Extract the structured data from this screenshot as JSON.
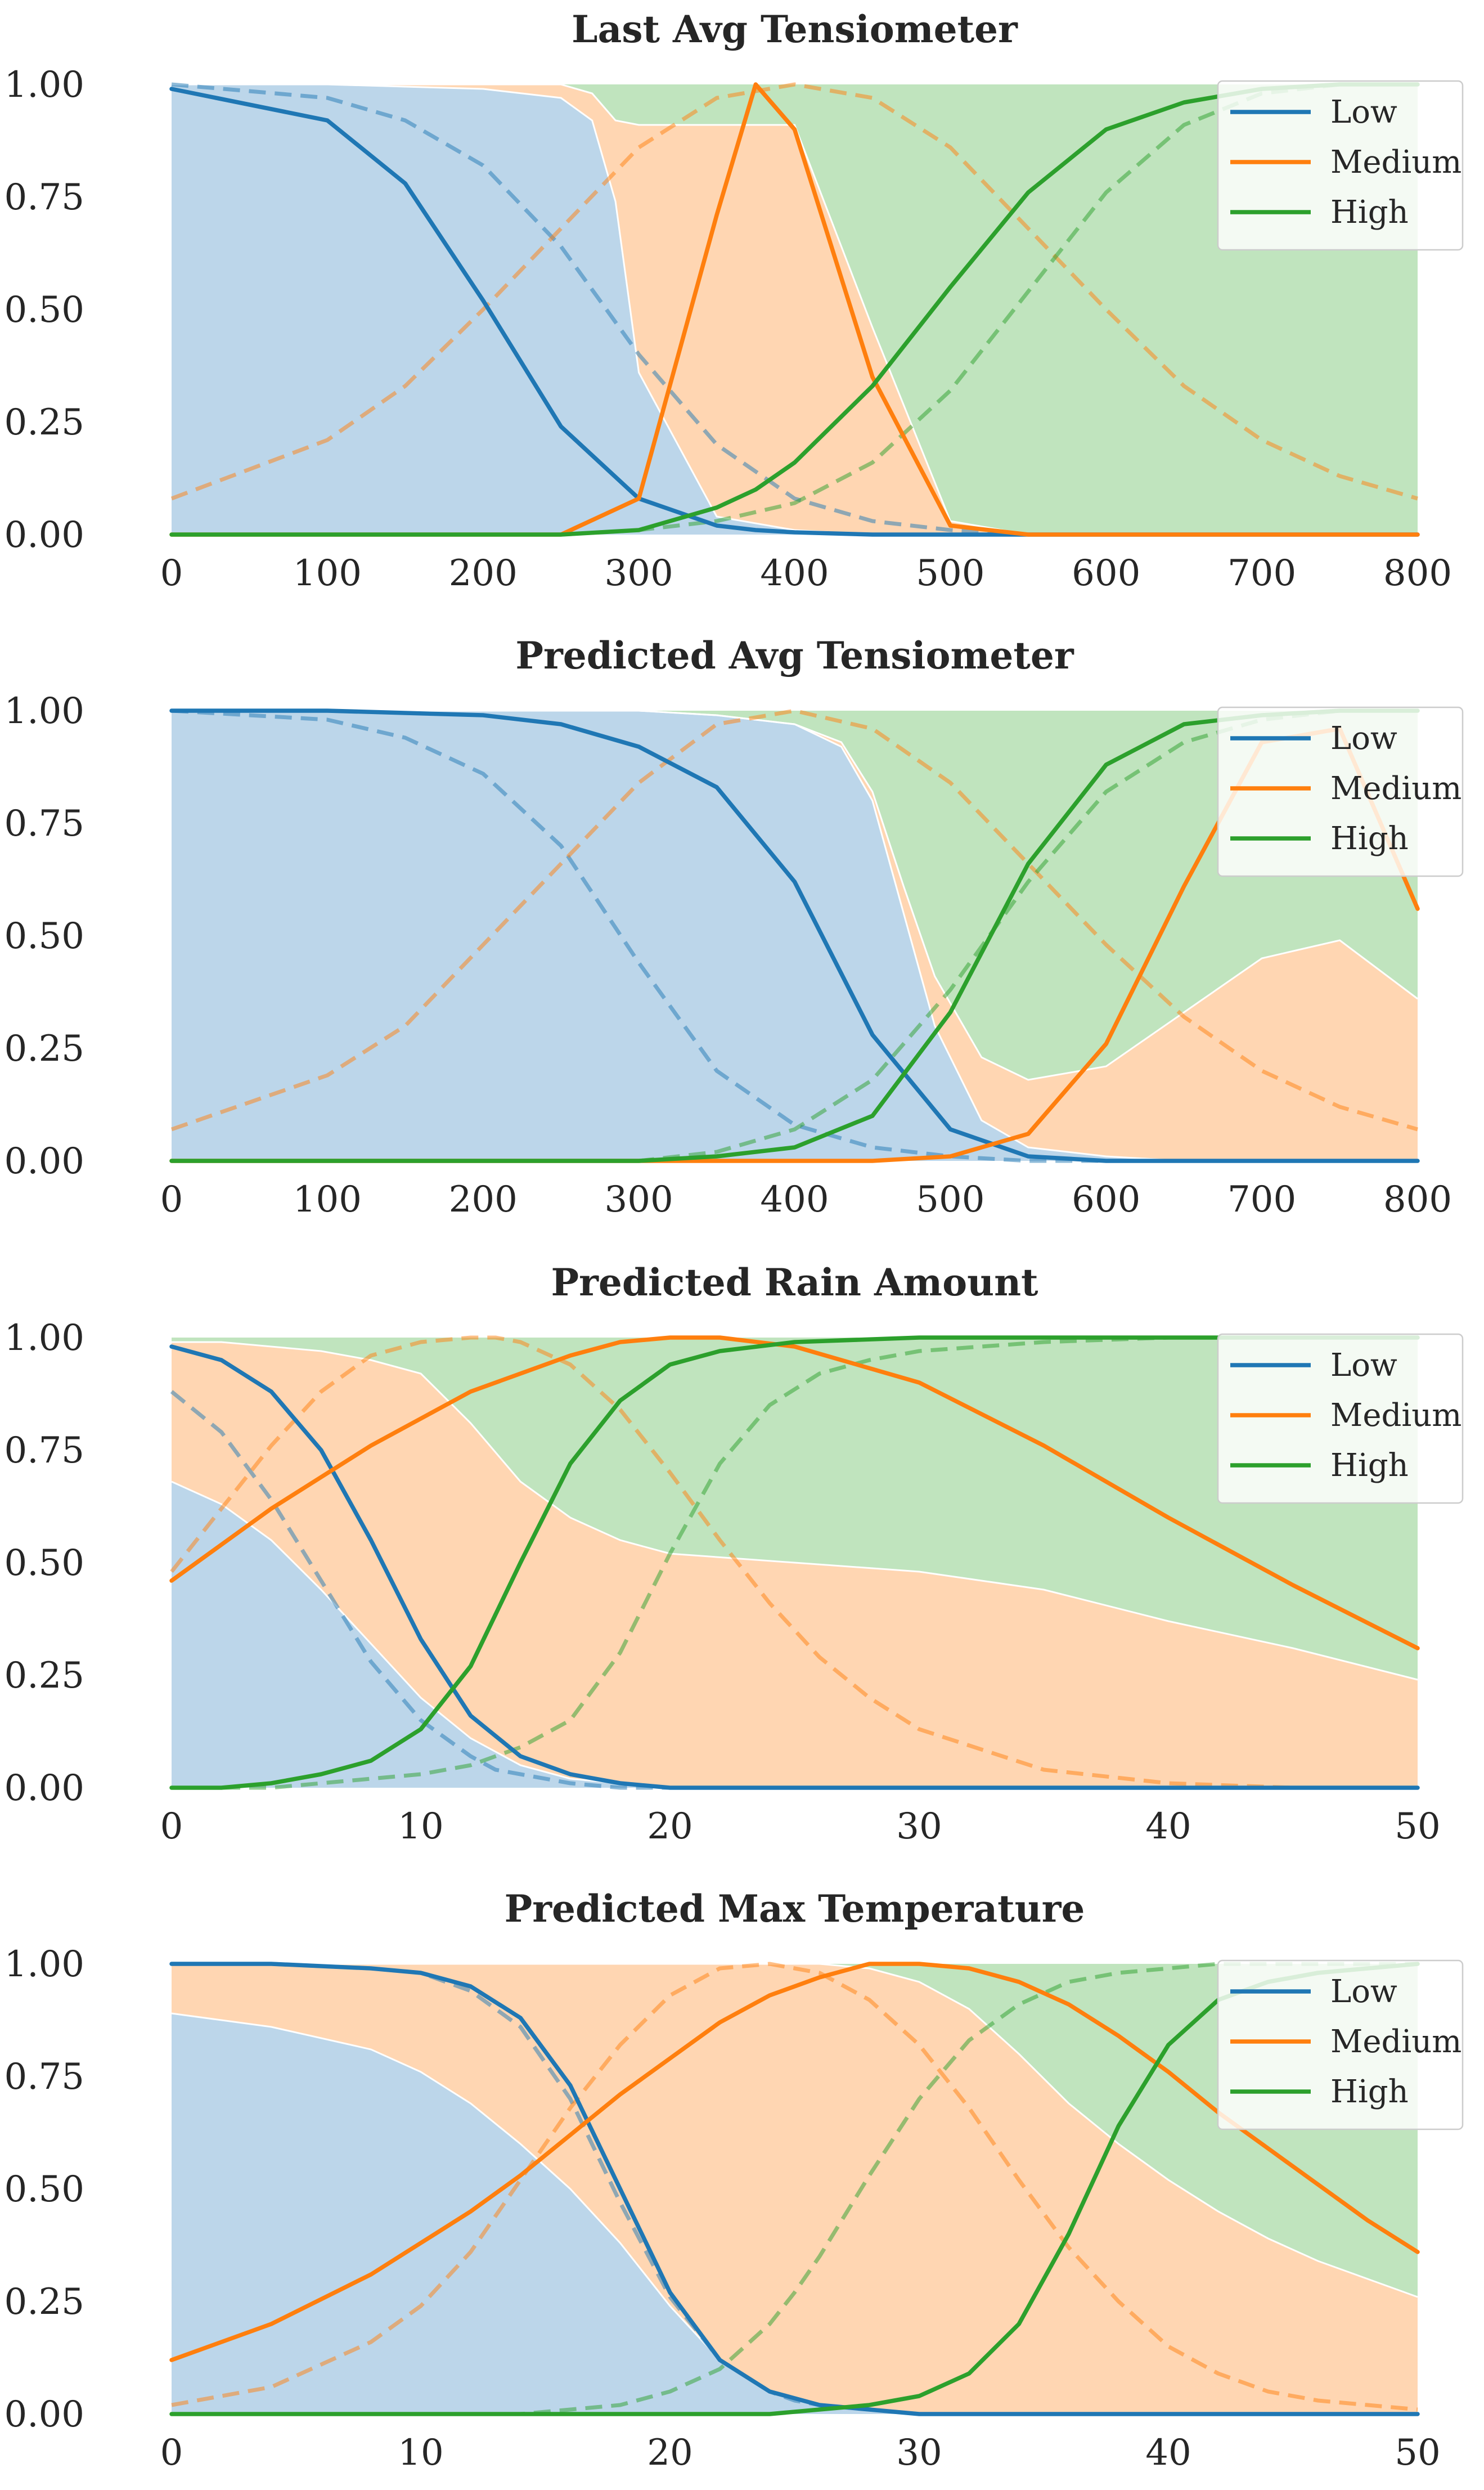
{
  "chart_data": [
    {
      "type": "line",
      "title": "Last Avg Tensiometer",
      "xlim": [
        0,
        800
      ],
      "ylim": [
        0,
        1
      ],
      "xticks": [
        "0",
        "100",
        "200",
        "300",
        "400",
        "500",
        "600",
        "700",
        "800"
      ],
      "yticks": [
        "0.00",
        "0.25",
        "0.50",
        "0.75",
        "1.00"
      ],
      "legend": {
        "position": "top-right",
        "entries": [
          "Low",
          "Medium",
          "High"
        ]
      },
      "colors": {
        "Low": "#1f77b4",
        "Medium": "#ff7f0e",
        "High": "#2ca02c"
      },
      "solid": {
        "x": [
          0,
          100,
          150,
          200,
          250,
          300,
          350,
          375,
          400,
          450,
          500,
          550,
          600,
          650,
          700,
          750,
          800
        ],
        "Low": [
          0.99,
          0.92,
          0.78,
          0.52,
          0.24,
          0.08,
          0.02,
          0.01,
          0.005,
          0.0,
          0.0,
          0.0,
          0.0,
          0.0,
          0.0,
          0.0,
          0.0
        ],
        "Medium": [
          0.0,
          0.0,
          0.0,
          0.0,
          0.0,
          0.08,
          0.71,
          1.0,
          0.9,
          0.35,
          0.02,
          0.0,
          0.0,
          0.0,
          0.0,
          0.0,
          0.0
        ],
        "High": [
          0.0,
          0.0,
          0.0,
          0.0,
          0.0,
          0.01,
          0.06,
          0.1,
          0.16,
          0.33,
          0.55,
          0.76,
          0.9,
          0.96,
          0.99,
          1.0,
          1.0
        ]
      },
      "dashed": {
        "x": [
          0,
          100,
          150,
          200,
          250,
          300,
          350,
          400,
          450,
          500,
          550,
          600,
          650,
          700,
          750,
          800
        ],
        "Low": [
          1.0,
          0.97,
          0.92,
          0.82,
          0.64,
          0.4,
          0.2,
          0.08,
          0.03,
          0.01,
          0.0,
          0.0,
          0.0,
          0.0,
          0.0,
          0.0
        ],
        "Medium": [
          0.08,
          0.21,
          0.33,
          0.5,
          0.68,
          0.86,
          0.97,
          1.0,
          0.97,
          0.86,
          0.68,
          0.5,
          0.33,
          0.21,
          0.13,
          0.08
        ],
        "High": [
          0.0,
          0.0,
          0.0,
          0.0,
          0.0,
          0.01,
          0.03,
          0.07,
          0.16,
          0.32,
          0.54,
          0.76,
          0.91,
          0.98,
          1.0,
          1.0
        ]
      },
      "area": {
        "x": [
          0,
          100,
          200,
          250,
          270,
          285,
          300,
          350,
          400,
          450,
          500,
          550,
          600,
          700,
          800
        ],
        "Low": [
          1.0,
          1.0,
          0.99,
          0.97,
          0.92,
          0.74,
          0.36,
          0.04,
          0.01,
          0.0,
          0.0,
          0.0,
          0.0,
          0.0,
          0.0
        ],
        "Medium": [
          0.0,
          0.0,
          0.01,
          0.03,
          0.06,
          0.18,
          0.55,
          0.87,
          0.9,
          0.46,
          0.03,
          0.0,
          0.0,
          0.0,
          0.0
        ]
      }
    },
    {
      "type": "line",
      "title": "Predicted Avg Tensiometer",
      "xlim": [
        0,
        800
      ],
      "ylim": [
        0,
        1
      ],
      "xticks": [
        "0",
        "100",
        "200",
        "300",
        "400",
        "500",
        "600",
        "700",
        "800"
      ],
      "yticks": [
        "0.00",
        "0.25",
        "0.50",
        "0.75",
        "1.00"
      ],
      "legend": {
        "position": "top-right",
        "entries": [
          "Low",
          "Medium",
          "High"
        ]
      },
      "colors": {
        "Low": "#1f77b4",
        "Medium": "#ff7f0e",
        "High": "#2ca02c"
      },
      "solid": {
        "x": [
          0,
          100,
          200,
          250,
          300,
          350,
          400,
          450,
          500,
          550,
          600,
          650,
          700,
          750,
          800
        ],
        "Low": [
          1.0,
          1.0,
          0.99,
          0.97,
          0.92,
          0.83,
          0.62,
          0.28,
          0.07,
          0.01,
          0.0,
          0.0,
          0.0,
          0.0,
          0.0
        ],
        "Medium": [
          0.0,
          0.0,
          0.0,
          0.0,
          0.0,
          0.0,
          0.0,
          0.0,
          0.01,
          0.06,
          0.26,
          0.61,
          0.93,
          0.96,
          0.56
        ],
        "High": [
          0.0,
          0.0,
          0.0,
          0.0,
          0.0,
          0.01,
          0.03,
          0.1,
          0.33,
          0.66,
          0.88,
          0.97,
          0.99,
          1.0,
          1.0
        ]
      },
      "dashed": {
        "x": [
          0,
          100,
          150,
          200,
          250,
          300,
          350,
          400,
          450,
          500,
          550,
          600,
          650,
          700,
          750,
          800
        ],
        "Low": [
          1.0,
          0.98,
          0.94,
          0.86,
          0.7,
          0.44,
          0.2,
          0.08,
          0.03,
          0.01,
          0.0,
          0.0,
          0.0,
          0.0,
          0.0,
          0.0
        ],
        "Medium": [
          0.07,
          0.19,
          0.3,
          0.48,
          0.66,
          0.84,
          0.97,
          1.0,
          0.96,
          0.84,
          0.66,
          0.48,
          0.32,
          0.2,
          0.12,
          0.07
        ],
        "High": [
          0.0,
          0.0,
          0.0,
          0.0,
          0.0,
          0.0,
          0.02,
          0.07,
          0.18,
          0.38,
          0.62,
          0.82,
          0.93,
          0.98,
          1.0,
          1.0
        ]
      },
      "area": {
        "x": [
          0,
          100,
          200,
          300,
          350,
          400,
          430,
          450,
          470,
          490,
          520,
          550,
          600,
          650,
          700,
          750,
          800
        ],
        "Low": [
          1.0,
          1.0,
          1.0,
          1.0,
          0.99,
          0.97,
          0.92,
          0.8,
          0.55,
          0.3,
          0.09,
          0.03,
          0.01,
          0.0,
          0.0,
          0.0,
          0.0
        ],
        "Medium": [
          0.0,
          0.0,
          0.0,
          0.0,
          0.0,
          0.0,
          0.01,
          0.02,
          0.06,
          0.11,
          0.14,
          0.15,
          0.2,
          0.33,
          0.45,
          0.49,
          0.36
        ]
      }
    },
    {
      "type": "line",
      "title": "Predicted Rain Amount",
      "xlim": [
        0,
        50
      ],
      "ylim": [
        0,
        1
      ],
      "xticks": [
        "0",
        "10",
        "20",
        "30",
        "40",
        "50"
      ],
      "yticks": [
        "0.00",
        "0.25",
        "0.50",
        "0.75",
        "1.00"
      ],
      "legend": {
        "position": "top-right",
        "entries": [
          "Low",
          "Medium",
          "High"
        ]
      },
      "colors": {
        "Low": "#1f77b4",
        "Medium": "#ff7f0e",
        "High": "#2ca02c"
      },
      "solid": {
        "x": [
          0,
          2,
          4,
          6,
          8,
          10,
          12,
          14,
          16,
          18,
          20,
          22,
          25,
          30,
          35,
          40,
          45,
          50
        ],
        "Low": [
          0.98,
          0.95,
          0.88,
          0.75,
          0.55,
          0.33,
          0.16,
          0.07,
          0.03,
          0.01,
          0.0,
          0.0,
          0.0,
          0.0,
          0.0,
          0.0,
          0.0,
          0.0
        ],
        "Medium": [
          0.46,
          0.54,
          0.62,
          0.69,
          0.76,
          0.82,
          0.88,
          0.92,
          0.96,
          0.99,
          1.0,
          1.0,
          0.98,
          0.9,
          0.76,
          0.6,
          0.45,
          0.31
        ],
        "High": [
          0.0,
          0.0,
          0.01,
          0.03,
          0.06,
          0.13,
          0.27,
          0.5,
          0.72,
          0.86,
          0.94,
          0.97,
          0.99,
          1.0,
          1.0,
          1.0,
          1.0,
          1.0
        ]
      },
      "dashed": {
        "x": [
          0,
          2,
          4,
          6,
          8,
          10,
          12,
          13,
          14,
          16,
          18,
          20,
          22,
          24,
          26,
          28,
          30,
          35,
          40,
          45,
          50
        ],
        "Low": [
          0.88,
          0.79,
          0.64,
          0.46,
          0.28,
          0.15,
          0.07,
          0.04,
          0.03,
          0.01,
          0.0,
          0.0,
          0.0,
          0.0,
          0.0,
          0.0,
          0.0,
          0.0,
          0.0,
          0.0,
          0.0
        ],
        "Medium": [
          0.48,
          0.62,
          0.76,
          0.88,
          0.96,
          0.99,
          1.0,
          1.0,
          0.99,
          0.94,
          0.84,
          0.7,
          0.55,
          0.41,
          0.29,
          0.2,
          0.13,
          0.04,
          0.01,
          0.0,
          0.0
        ],
        "High": [
          0.0,
          0.0,
          0.0,
          0.01,
          0.02,
          0.03,
          0.05,
          0.07,
          0.09,
          0.15,
          0.3,
          0.52,
          0.72,
          0.85,
          0.92,
          0.95,
          0.97,
          0.99,
          1.0,
          1.0,
          1.0
        ]
      },
      "area": {
        "x": [
          0,
          2,
          4,
          6,
          8,
          10,
          12,
          14,
          16,
          18,
          20,
          25,
          30,
          35,
          40,
          45,
          50
        ],
        "Low": [
          0.68,
          0.63,
          0.55,
          0.44,
          0.32,
          0.2,
          0.11,
          0.05,
          0.02,
          0.01,
          0.0,
          0.0,
          0.0,
          0.0,
          0.0,
          0.0,
          0.0
        ],
        "Medium": [
          0.31,
          0.36,
          0.43,
          0.53,
          0.63,
          0.72,
          0.7,
          0.63,
          0.58,
          0.54,
          0.52,
          0.5,
          0.48,
          0.44,
          0.37,
          0.31,
          0.24
        ]
      }
    },
    {
      "type": "line",
      "title": "Predicted Max Temperature",
      "xlim": [
        0,
        50
      ],
      "ylim": [
        0,
        1
      ],
      "xticks": [
        "0",
        "10",
        "20",
        "30",
        "40",
        "50"
      ],
      "yticks": [
        "0.00",
        "0.25",
        "0.50",
        "0.75",
        "1.00"
      ],
      "legend": {
        "position": "top-right",
        "entries": [
          "Low",
          "Medium",
          "High"
        ]
      },
      "colors": {
        "Low": "#1f77b4",
        "Medium": "#ff7f0e",
        "High": "#2ca02c"
      },
      "solid": {
        "x": [
          0,
          4,
          8,
          10,
          12,
          14,
          16,
          18,
          20,
          22,
          24,
          26,
          28,
          30,
          32,
          34,
          36,
          38,
          40,
          42,
          44,
          46,
          48,
          50
        ],
        "Low": [
          1.0,
          1.0,
          0.99,
          0.98,
          0.95,
          0.88,
          0.73,
          0.5,
          0.27,
          0.12,
          0.05,
          0.02,
          0.01,
          0.0,
          0.0,
          0.0,
          0.0,
          0.0,
          0.0,
          0.0,
          0.0,
          0.0,
          0.0,
          0.0
        ],
        "Medium": [
          0.12,
          0.2,
          0.31,
          0.38,
          0.45,
          0.53,
          0.62,
          0.71,
          0.79,
          0.87,
          0.93,
          0.97,
          1.0,
          1.0,
          0.99,
          0.96,
          0.91,
          0.84,
          0.76,
          0.67,
          0.59,
          0.51,
          0.43,
          0.36
        ],
        "High": [
          0.0,
          0.0,
          0.0,
          0.0,
          0.0,
          0.0,
          0.0,
          0.0,
          0.0,
          0.0,
          0.0,
          0.01,
          0.02,
          0.04,
          0.09,
          0.2,
          0.4,
          0.64,
          0.82,
          0.92,
          0.96,
          0.98,
          0.99,
          1.0
        ]
      },
      "dashed": {
        "x": [
          0,
          4,
          8,
          10,
          12,
          14,
          16,
          18,
          20,
          22,
          24,
          25,
          26,
          28,
          30,
          32,
          34,
          36,
          38,
          40,
          42,
          44,
          46,
          48,
          50
        ],
        "Low": [
          1.0,
          1.0,
          0.99,
          0.98,
          0.94,
          0.86,
          0.7,
          0.47,
          0.26,
          0.12,
          0.05,
          0.03,
          0.02,
          0.01,
          0.0,
          0.0,
          0.0,
          0.0,
          0.0,
          0.0,
          0.0,
          0.0,
          0.0,
          0.0,
          0.0
        ],
        "Medium": [
          0.02,
          0.06,
          0.16,
          0.24,
          0.36,
          0.52,
          0.68,
          0.82,
          0.93,
          0.99,
          1.0,
          0.99,
          0.98,
          0.92,
          0.82,
          0.68,
          0.52,
          0.37,
          0.25,
          0.15,
          0.09,
          0.05,
          0.03,
          0.02,
          0.01
        ],
        "High": [
          0.0,
          0.0,
          0.0,
          0.0,
          0.0,
          0.0,
          0.01,
          0.02,
          0.05,
          0.1,
          0.2,
          0.27,
          0.35,
          0.53,
          0.7,
          0.83,
          0.91,
          0.96,
          0.98,
          0.99,
          1.0,
          1.0,
          1.0,
          1.0,
          1.0
        ]
      },
      "area": {
        "x": [
          0,
          4,
          8,
          10,
          12,
          14,
          16,
          18,
          20,
          22,
          24,
          26,
          28,
          30,
          32,
          34,
          36,
          38,
          40,
          42,
          44,
          46,
          48,
          50
        ],
        "Low": [
          0.89,
          0.86,
          0.81,
          0.76,
          0.69,
          0.6,
          0.5,
          0.38,
          0.24,
          0.12,
          0.05,
          0.02,
          0.01,
          0.0,
          0.0,
          0.0,
          0.0,
          0.0,
          0.0,
          0.0,
          0.0,
          0.0,
          0.0,
          0.0
        ],
        "Medium": [
          0.11,
          0.14,
          0.19,
          0.24,
          0.31,
          0.4,
          0.5,
          0.62,
          0.76,
          0.88,
          0.95,
          0.98,
          0.98,
          0.96,
          0.9,
          0.8,
          0.69,
          0.6,
          0.52,
          0.45,
          0.39,
          0.34,
          0.3,
          0.26
        ]
      }
    }
  ]
}
